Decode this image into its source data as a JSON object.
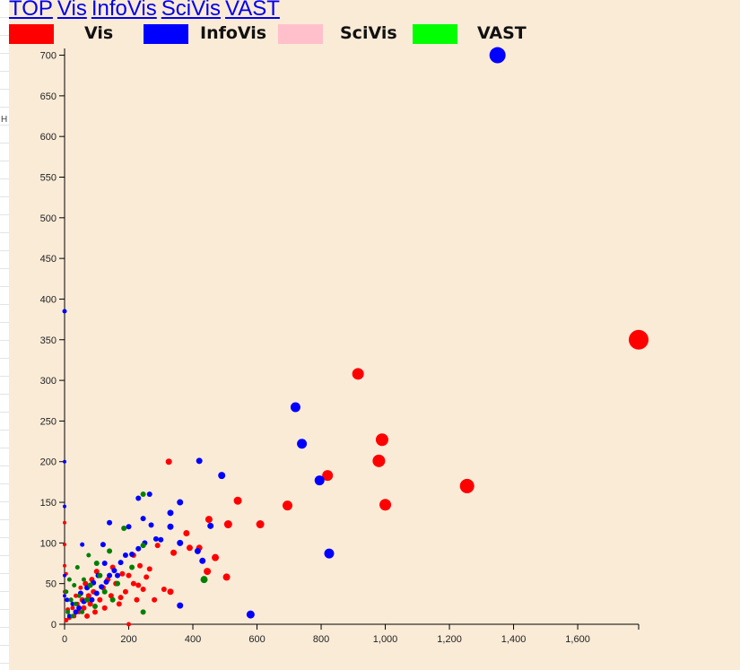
{
  "nav": [
    "TOP",
    "Vis",
    "InfoVis",
    "SciVis",
    "VAST"
  ],
  "legend": [
    {
      "label": "Vis",
      "color": "#ff0000"
    },
    {
      "label": "InfoVis",
      "color": "#0000ff"
    },
    {
      "label": "SciVis",
      "color": "#ffc0cb"
    },
    {
      "label": "VAST",
      "color": "#00ff00"
    }
  ],
  "edge_text": "H",
  "chart_data": {
    "type": "scatter",
    "xlim": [
      0,
      1790
    ],
    "ylim": [
      0,
      705
    ],
    "xticks": [
      0,
      200,
      400,
      600,
      800,
      1000,
      1200,
      1400,
      1600
    ],
    "yticks": [
      0,
      50,
      100,
      150,
      200,
      250,
      300,
      350,
      400,
      450,
      500,
      550,
      600,
      650,
      700
    ],
    "series": [
      {
        "name": "Vis",
        "color": "#ff0000",
        "points": [
          [
            1790,
            350,
            11
          ],
          [
            915,
            308,
            6.5
          ],
          [
            990,
            227,
            7
          ],
          [
            980,
            201,
            7
          ],
          [
            820,
            183,
            6
          ],
          [
            1255,
            170,
            8
          ],
          [
            1000,
            147,
            6.5
          ],
          [
            695,
            146,
            5.5
          ],
          [
            540,
            152,
            4.5
          ],
          [
            610,
            123,
            4.5
          ],
          [
            510,
            123,
            4.5
          ],
          [
            325,
            200,
            3.5
          ],
          [
            450,
            129,
            4
          ],
          [
            470,
            82,
            4
          ],
          [
            505,
            58,
            4
          ],
          [
            445,
            65,
            4
          ],
          [
            380,
            112,
            3.5
          ],
          [
            420,
            94,
            3.5
          ],
          [
            390,
            94,
            3.5
          ],
          [
            340,
            88,
            3.5
          ],
          [
            330,
            40,
            3.5
          ],
          [
            310,
            43,
            3
          ],
          [
            290,
            97,
            3
          ],
          [
            265,
            68,
            3
          ],
          [
            255,
            58,
            3
          ],
          [
            235,
            72,
            3
          ],
          [
            230,
            48,
            3
          ],
          [
            225,
            30,
            3
          ],
          [
            215,
            85,
            3
          ],
          [
            200,
            60,
            3
          ],
          [
            190,
            40,
            3
          ],
          [
            180,
            62,
            3
          ],
          [
            170,
            25,
            3
          ],
          [
            160,
            50,
            3
          ],
          [
            150,
            70,
            3
          ],
          [
            145,
            35,
            3
          ],
          [
            135,
            55,
            3
          ],
          [
            125,
            20,
            3
          ],
          [
            120,
            45,
            3
          ],
          [
            110,
            30,
            3
          ],
          [
            100,
            65,
            3
          ],
          [
            95,
            15,
            3
          ],
          [
            90,
            40,
            3
          ],
          [
            85,
            55,
            3
          ],
          [
            80,
            25,
            3
          ],
          [
            75,
            35,
            3
          ],
          [
            70,
            10,
            3
          ],
          [
            65,
            50,
            3
          ],
          [
            60,
            20,
            3
          ],
          [
            55,
            30,
            3
          ],
          [
            50,
            45,
            2.5
          ],
          [
            45,
            15,
            2.5
          ],
          [
            40,
            25,
            2.5
          ],
          [
            35,
            35,
            2.5
          ],
          [
            30,
            10,
            2.5
          ],
          [
            25,
            20,
            2.5
          ],
          [
            20,
            30,
            2.5
          ],
          [
            15,
            8,
            2.5
          ],
          [
            10,
            18,
            2.5
          ],
          [
            5,
            5,
            2.5
          ],
          [
            0,
            125,
            2
          ],
          [
            0,
            98,
            2
          ],
          [
            0,
            72,
            2
          ],
          [
            0,
            40,
            2
          ],
          [
            5,
            62,
            2
          ],
          [
            200,
            0,
            2.5
          ],
          [
            280,
            30,
            3
          ],
          [
            245,
            43,
            3
          ],
          [
            215,
            50,
            3
          ],
          [
            175,
            33,
            3
          ]
        ]
      },
      {
        "name": "InfoVis",
        "color": "#0000ff",
        "points": [
          [
            1350,
            700,
            9
          ],
          [
            720,
            267,
            5.5
          ],
          [
            740,
            222,
            5.5
          ],
          [
            795,
            177,
            5.5
          ],
          [
            825,
            87,
            5.5
          ],
          [
            580,
            12,
            4.5
          ],
          [
            490,
            183,
            4
          ],
          [
            420,
            201,
            3.5
          ],
          [
            360,
            150,
            3.5
          ],
          [
            455,
            121,
            3.5
          ],
          [
            430,
            78,
            3.5
          ],
          [
            415,
            90,
            3.5
          ],
          [
            360,
            100,
            3.5
          ],
          [
            330,
            137,
            3.5
          ],
          [
            330,
            120,
            3.5
          ],
          [
            300,
            104,
            3
          ],
          [
            285,
            105,
            3
          ],
          [
            265,
            160,
            3
          ],
          [
            230,
            155,
            3
          ],
          [
            245,
            130,
            3
          ],
          [
            270,
            122,
            3
          ],
          [
            250,
            100,
            3
          ],
          [
            230,
            93,
            3
          ],
          [
            210,
            86,
            3
          ],
          [
            190,
            85,
            3
          ],
          [
            175,
            76,
            3
          ],
          [
            155,
            66,
            3
          ],
          [
            140,
            60,
            3
          ],
          [
            130,
            52,
            3
          ],
          [
            115,
            46,
            3
          ],
          [
            105,
            60,
            3
          ],
          [
            100,
            38,
            3
          ],
          [
            90,
            51,
            3
          ],
          [
            85,
            30,
            3
          ],
          [
            70,
            45,
            3
          ],
          [
            60,
            28,
            3
          ],
          [
            50,
            38,
            3
          ],
          [
            45,
            20,
            3
          ],
          [
            35,
            15,
            3
          ],
          [
            25,
            25,
            2.5
          ],
          [
            15,
            10,
            2.5
          ],
          [
            8,
            30,
            2.5
          ],
          [
            0,
            385,
            2.5
          ],
          [
            0,
            200,
            2
          ],
          [
            0,
            145,
            2
          ],
          [
            0,
            60,
            2
          ],
          [
            0,
            35,
            2
          ],
          [
            360,
            23,
            3.5
          ],
          [
            140,
            125,
            3
          ],
          [
            200,
            120,
            3
          ],
          [
            120,
            98,
            3
          ],
          [
            55,
            98,
            2.5
          ],
          [
            165,
            60,
            3
          ],
          [
            125,
            75,
            3
          ]
        ]
      },
      {
        "name": "VAST",
        "color": "#008000",
        "points": [
          [
            435,
            55,
            4
          ],
          [
            245,
            160,
            3
          ],
          [
            185,
            118,
            3
          ],
          [
            245,
            97,
            3
          ],
          [
            210,
            70,
            3
          ],
          [
            165,
            50,
            3
          ],
          [
            150,
            30,
            3
          ],
          [
            125,
            40,
            3
          ],
          [
            110,
            60,
            3
          ],
          [
            95,
            22,
            3
          ],
          [
            80,
            48,
            3
          ],
          [
            70,
            30,
            3
          ],
          [
            60,
            55,
            2.5
          ],
          [
            55,
            15,
            2.5
          ],
          [
            45,
            35,
            2.5
          ],
          [
            40,
            70,
            2.5
          ],
          [
            35,
            25,
            2.5
          ],
          [
            30,
            48,
            2.5
          ],
          [
            25,
            10,
            2.5
          ],
          [
            20,
            30,
            2.5
          ],
          [
            15,
            55,
            2.5
          ],
          [
            10,
            15,
            2.5
          ],
          [
            5,
            40,
            2.5
          ],
          [
            245,
            15,
            3
          ],
          [
            140,
            90,
            3
          ],
          [
            100,
            75,
            3
          ],
          [
            75,
            85,
            2.5
          ]
        ]
      }
    ]
  }
}
